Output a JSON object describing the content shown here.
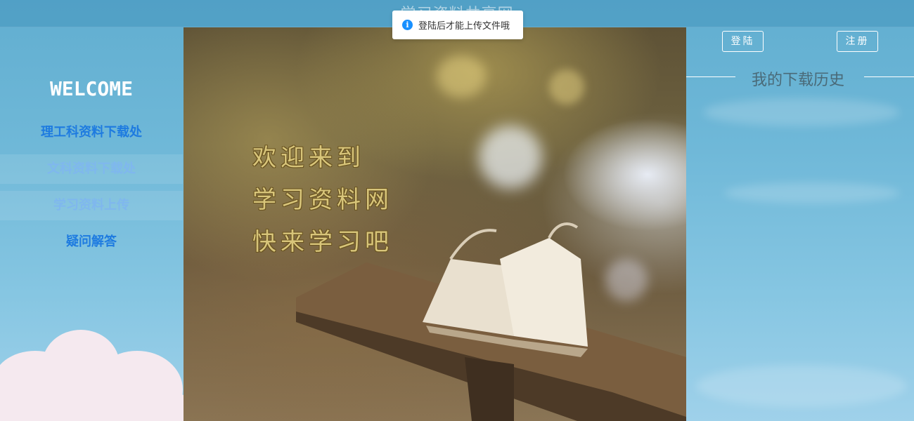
{
  "header": {
    "site_title": "学习资料共享网"
  },
  "sidebar": {
    "welcome": "WELCOME",
    "items": [
      {
        "label": "理工科资料下载处"
      },
      {
        "label": "文科资料下载处"
      },
      {
        "label": "学习资料上传"
      },
      {
        "label": "疑问解答"
      }
    ]
  },
  "hero": {
    "lines": [
      "欢迎来到",
      "学习资料网",
      "快来学习吧"
    ]
  },
  "auth": {
    "login_label": "登陆",
    "register_label": "注册"
  },
  "history": {
    "title": "我的下载历史"
  },
  "toast": {
    "message": "登陆后才能上传文件哦",
    "icon": "info-icon"
  },
  "colors": {
    "accent": "#1890ff",
    "nav_link": "#1e7be0",
    "nav_active": "#7fb7ee",
    "hero_text": "#d8c57a"
  }
}
